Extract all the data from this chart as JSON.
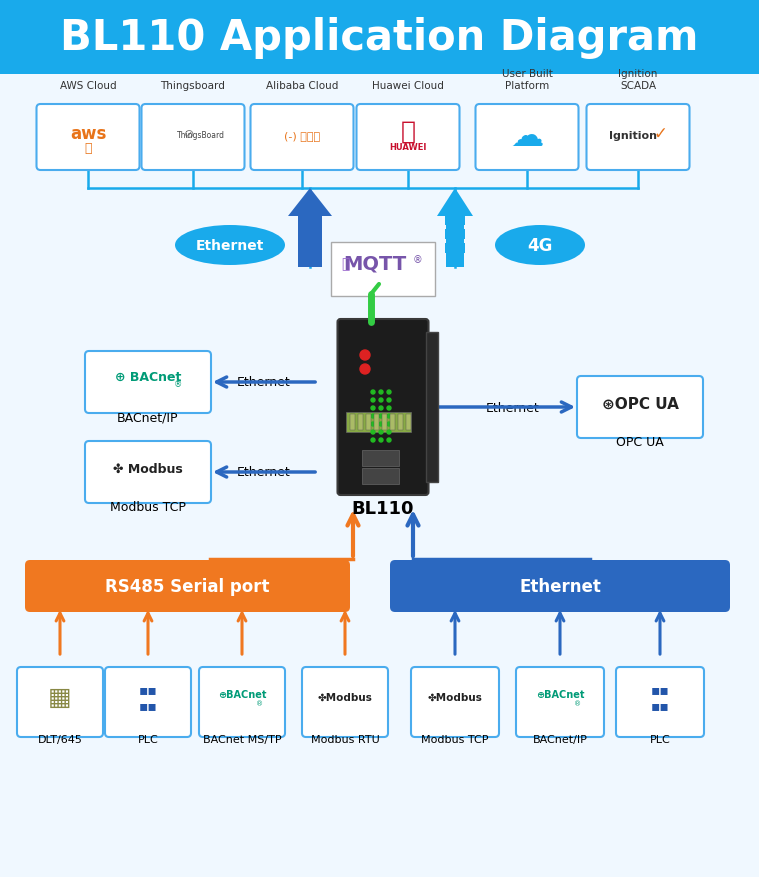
{
  "title": "BL110 Application Diagram",
  "title_bg": "#19AAEB",
  "title_color": "white",
  "title_fontsize": 30,
  "bg_color": "#F0F8FF",
  "cloud_labels": [
    "AWS Cloud",
    "Thingsboard",
    "Alibaba Cloud",
    "Huawei Cloud",
    "User Built\nPlatform",
    "Ignition\nSCADA"
  ],
  "bottom_rs485_label": "RS485 Serial port",
  "bottom_eth_label": "Ethernet",
  "bottom_items_left": [
    "DLT/645",
    "PLC",
    "BACnet MS/TP",
    "Modbus RTU"
  ],
  "bottom_items_right": [
    "Modbus TCP",
    "BACnet/IP",
    "PLC"
  ],
  "orange_color": "#F07820",
  "blue_color": "#2B68C0",
  "light_blue": "#19AAEB",
  "arrow_blue": "#2B68C0",
  "box_border": "#4AACEE"
}
